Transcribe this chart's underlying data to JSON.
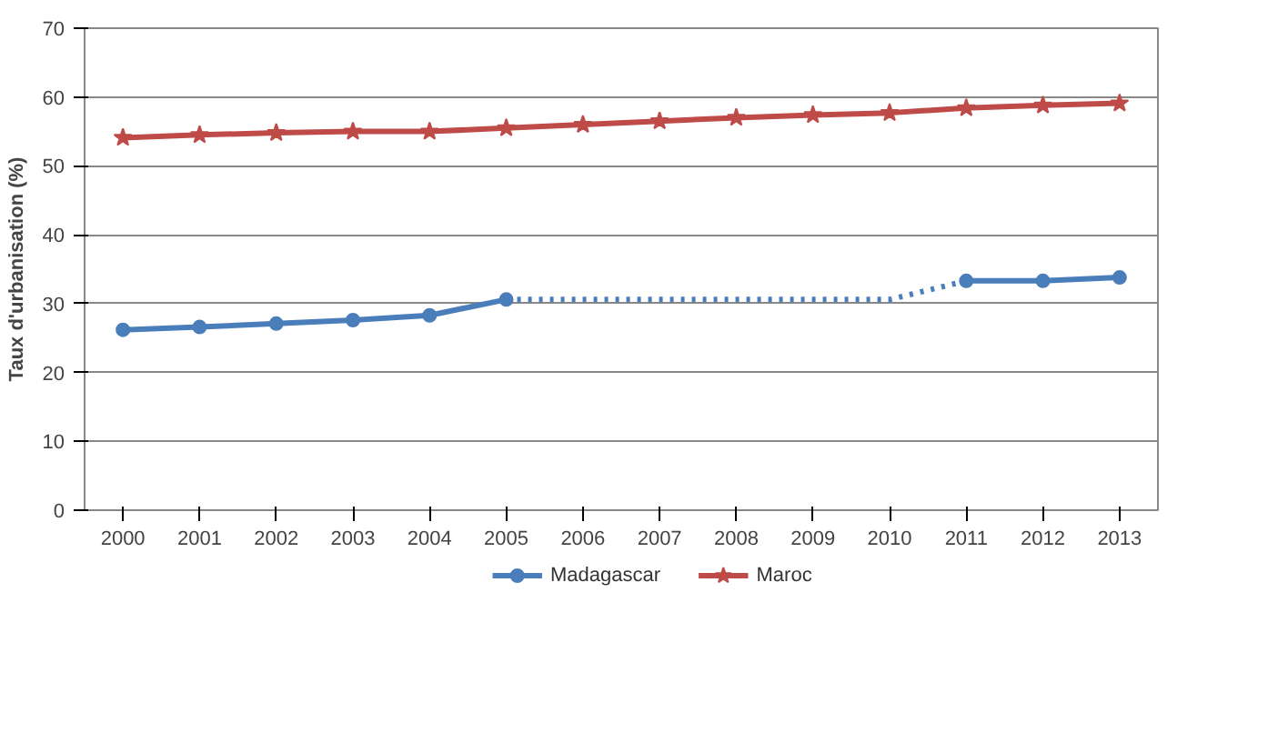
{
  "chart_data": {
    "type": "line",
    "ylabel": "Taux d'urbanisation (%)",
    "categories": [
      "2000",
      "2001",
      "2002",
      "2003",
      "2004",
      "2005",
      "2006",
      "2007",
      "2008",
      "2009",
      "2010",
      "2011",
      "2012",
      "2013"
    ],
    "ylim": [
      0,
      70
    ],
    "yticks": [
      0,
      10,
      20,
      30,
      40,
      50,
      60,
      70
    ],
    "grid": "y",
    "legend": "bottom",
    "series": [
      {
        "name": "Madagascar",
        "color": "#4a7ebb",
        "marker": "circle",
        "line_style": "solid",
        "values": [
          26.2,
          26.6,
          27.1,
          27.6,
          28.3,
          30.6,
          null,
          null,
          null,
          null,
          null,
          33.3,
          33.3,
          33.8
        ]
      },
      {
        "color": "#4a7ebb",
        "marker": "none",
        "line_style": "dotted",
        "values": [
          null,
          null,
          null,
          null,
          null,
          30.6,
          30.6,
          30.6,
          30.6,
          30.6,
          30.6,
          33.3,
          null,
          null
        ]
      },
      {
        "name": "Maroc",
        "color": "#be4b48",
        "marker": "star",
        "line_style": "solid",
        "values": [
          54.1,
          54.5,
          54.8,
          55.0,
          55.0,
          55.5,
          56.0,
          56.5,
          57.0,
          57.4,
          57.7,
          58.4,
          58.8,
          59.1
        ]
      }
    ]
  }
}
